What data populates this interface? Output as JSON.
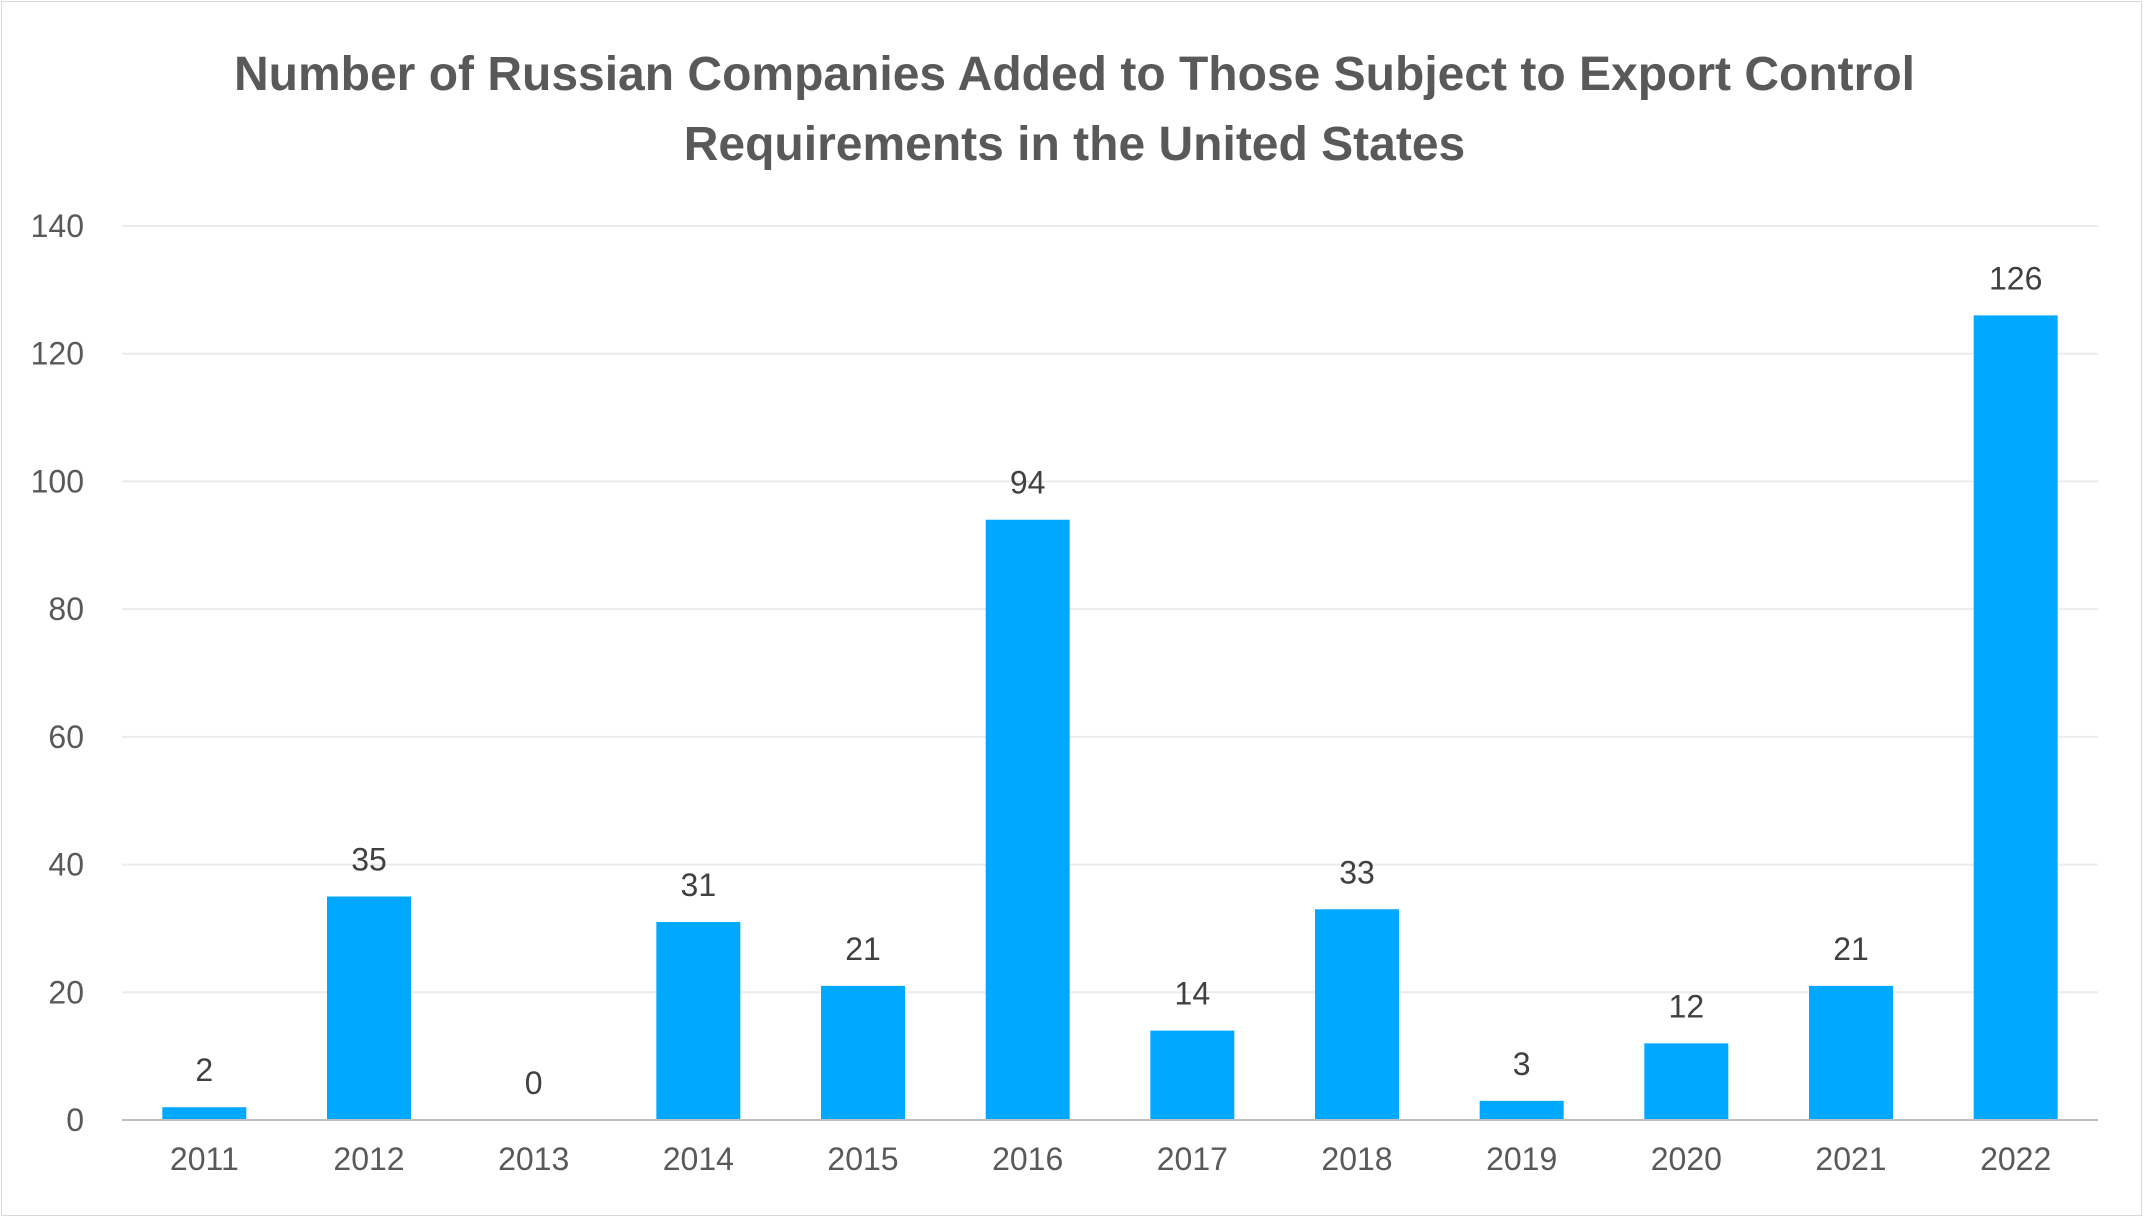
{
  "chart_data": {
    "type": "bar",
    "title": "Number of Russian Companies Added to Those Subject to Export Control Requirements in the United States",
    "categories": [
      "2011",
      "2012",
      "2013",
      "2014",
      "2015",
      "2016",
      "2017",
      "2018",
      "2019",
      "2020",
      "2021",
      "2022"
    ],
    "values": [
      2,
      35,
      0,
      31,
      21,
      94,
      14,
      33,
      3,
      12,
      21,
      126
    ],
    "value_labels": [
      "2",
      "35",
      "0",
      "31",
      "21",
      "94",
      "14",
      "33",
      "3",
      "12",
      "21",
      "126"
    ],
    "ylim": [
      0,
      140
    ],
    "yticks": [
      0,
      20,
      40,
      60,
      80,
      100,
      120,
      140
    ],
    "ytick_labels": [
      "0",
      "20",
      "40",
      "60",
      "80",
      "100",
      "120",
      "140"
    ],
    "grid": true,
    "legend": "none",
    "bar_color": "#00a8ff",
    "xlabel": "",
    "ylabel": ""
  }
}
